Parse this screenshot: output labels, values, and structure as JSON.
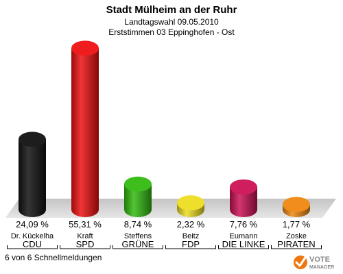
{
  "header": {
    "title": "Stadt Mülheim an der Ruhr",
    "subtitle1": "Landtagswahl 09.05.2010",
    "subtitle2": "Erststimmen 03 Eppinghofen - Ost"
  },
  "chart_data": {
    "type": "bar",
    "bar_shape": "3d-cylinder",
    "ylim": [
      0,
      60
    ],
    "grid": false,
    "legend": "none",
    "bars": [
      {
        "candidate": "Dr. Kückelha",
        "party": "CDU",
        "value": 24.09,
        "label": "24,09 %",
        "color": "#111111"
      },
      {
        "candidate": "Kraft",
        "party": "SPD",
        "value": 55.31,
        "label": "55,31 %",
        "color": "#ee1111"
      },
      {
        "candidate": "Steffens",
        "party": "GRÜNE",
        "value": 8.74,
        "label": "8,74 %",
        "color": "#33bb11"
      },
      {
        "candidate": "Beitz",
        "party": "FDP",
        "value": 2.32,
        "label": "2,32 %",
        "color": "#eedd22"
      },
      {
        "candidate": "Eumann",
        "party": "DIE LINKE",
        "value": 7.76,
        "label": "7,76 %",
        "color": "#cc1155"
      },
      {
        "candidate": "Zoske",
        "party": "PIRATEN",
        "value": 1.77,
        "label": "1,77 %",
        "color": "#ee8811"
      }
    ]
  },
  "footer": {
    "status": "6 von 6 Schnellmeldungen",
    "logo_text_1": "VOTE",
    "logo_text_2": "MANAGER"
  }
}
